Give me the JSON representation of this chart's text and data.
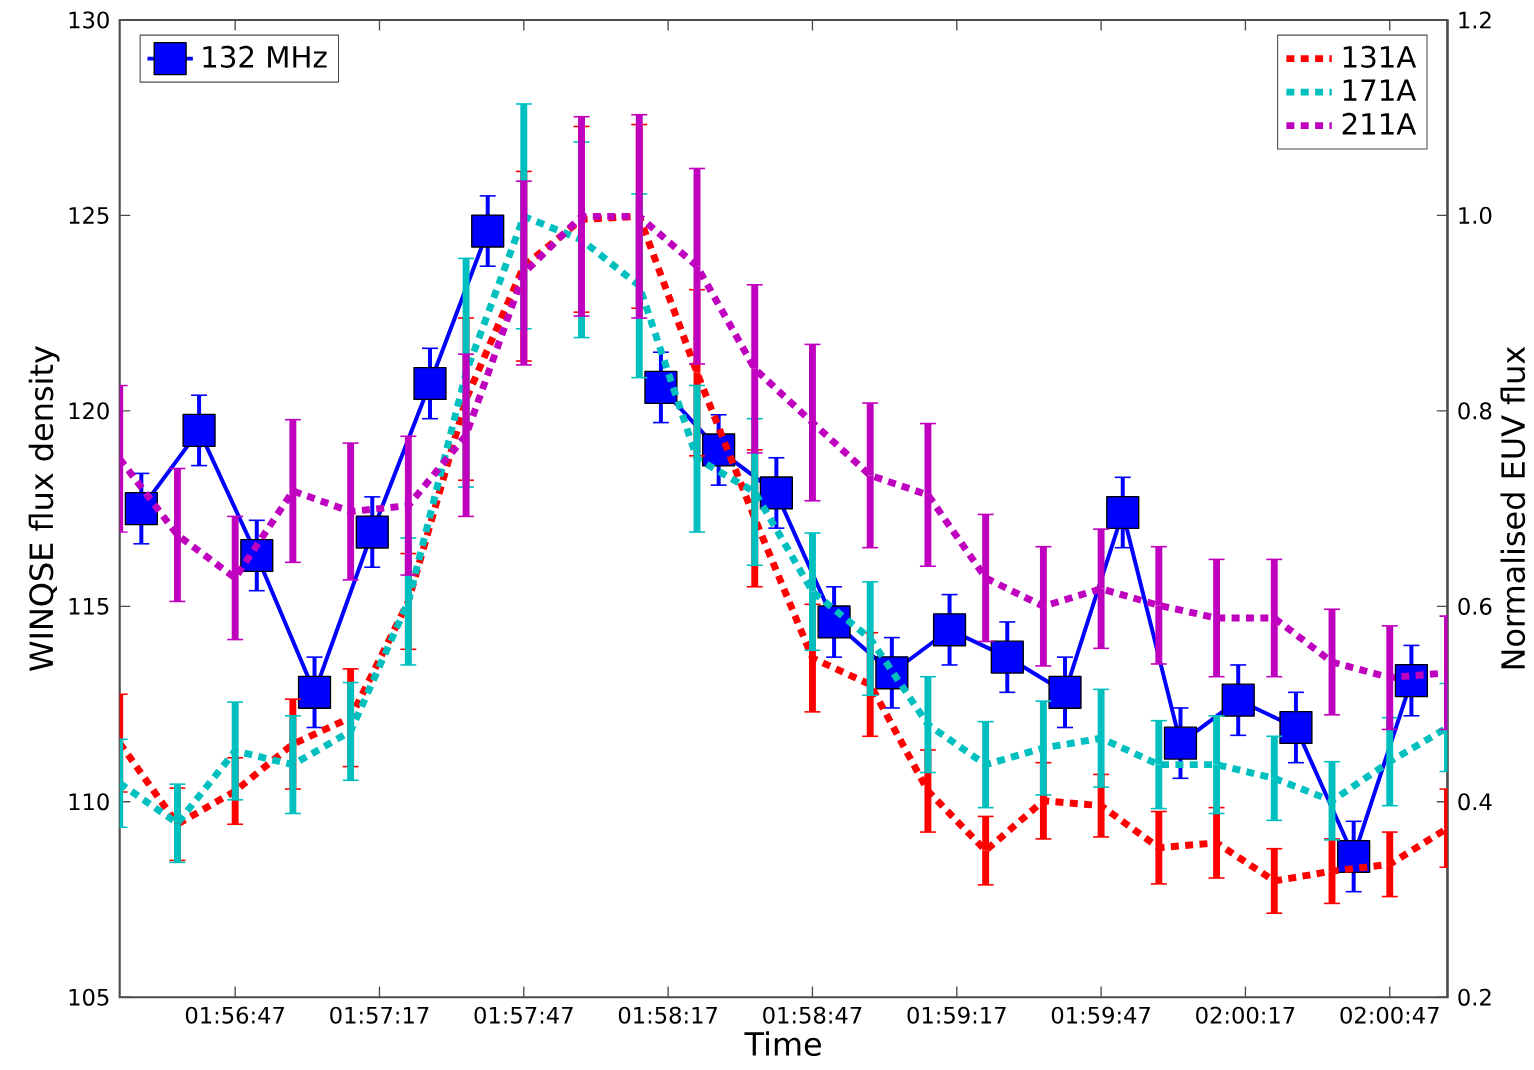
{
  "chart_data": {
    "type": "line",
    "xlabel": "Time",
    "ylabel": "WINQSE flux density",
    "y2label": "Normalised EUV flux",
    "x": [
      1.939722,
      1.943056,
      1.946389,
      1.949722,
      1.953056,
      1.956389,
      1.959722,
      1.963056,
      1.966389,
      1.969722,
      1.973056,
      1.976389,
      1.979722,
      1.983056,
      1.986389,
      1.989722,
      1.993056,
      1.996389,
      1.999722,
      2.003056,
      2.006389,
      2.009722,
      2.013056,
      2.016389
    ],
    "xlim": [
      1.939722,
      2.016389
    ],
    "xticks": [
      {
        "value": 1.946389,
        "label": "01:56:47"
      },
      {
        "value": 1.954722,
        "label": "01:57:17"
      },
      {
        "value": 1.963056,
        "label": "01:57:47"
      },
      {
        "value": 1.971389,
        "label": "01:58:17"
      },
      {
        "value": 1.979722,
        "label": "01:58:47"
      },
      {
        "value": 1.988056,
        "label": "01:59:17"
      },
      {
        "value": 1.996389,
        "label": "01:59:47"
      },
      {
        "value": 2.004722,
        "label": "02:00:17"
      },
      {
        "value": 2.013056,
        "label": "02:00:47"
      }
    ],
    "ylim": [
      105,
      130
    ],
    "yticks": [
      105,
      110,
      115,
      120,
      125,
      130
    ],
    "y2lim": [
      0.2,
      1.2
    ],
    "y2ticks": [
      {
        "value": 0.2,
        "label": "0.2"
      },
      {
        "value": 0.4,
        "label": "0.4"
      },
      {
        "value": 0.6,
        "label": "0.6"
      },
      {
        "value": 0.8,
        "label": "0.8"
      },
      {
        "value": 1.0,
        "label": "1.0"
      },
      {
        "value": 1.2,
        "label": "1.2"
      }
    ],
    "legend": "top right",
    "grid": false,
    "series": [
      {
        "name": "132 MHz",
        "color": "#0000ff",
        "marker": "square",
        "line_style": "solid",
        "x": [
          1.940972,
          1.944306,
          1.947639,
          1.950972,
          1.954306,
          1.957639,
          1.960972,
          1.964306,
          1.967639,
          1.970972,
          1.974306,
          1.977639,
          1.980972,
          1.984306,
          1.987639,
          1.990972,
          1.994306,
          1.997639,
          2.000972,
          2.004306,
          2.007639,
          2.010972,
          2.014306
        ],
        "values": [
          117.5,
          119.5,
          116.3,
          112.8,
          116.9,
          120.7,
          124.6,
          null,
          null,
          120.6,
          119.0,
          117.9,
          114.6,
          113.3,
          114.4,
          113.7,
          112.8,
          117.4,
          111.5,
          112.6,
          111.9,
          108.6,
          113.1
        ],
        "errors": [
          0.9,
          0.9,
          0.9,
          0.9,
          0.9,
          0.9,
          0.9,
          null,
          null,
          0.9,
          0.9,
          0.9,
          0.9,
          0.9,
          0.9,
          0.9,
          0.9,
          0.9,
          0.9,
          0.9,
          0.9,
          0.9,
          0.9
        ]
      },
      {
        "name": "131A",
        "color": "#ff0000",
        "axis": "y2",
        "marker": "none",
        "line_style": "dotted",
        "values": [
          0.46,
          0.377,
          0.411,
          0.459,
          0.486,
          0.605,
          0.812,
          0.948,
          0.996,
          0.999,
          0.839,
          0.69,
          0.547,
          0.52,
          0.411,
          0.35,
          0.401,
          0.396,
          0.353,
          0.358,
          0.319,
          0.329,
          0.336,
          0.373
        ],
        "errors": [
          0.05,
          0.037,
          0.034,
          0.046,
          0.05,
          0.049,
          0.083,
          0.097,
          0.095,
          0.094,
          0.085,
          0.07,
          0.055,
          0.053,
          0.042,
          0.035,
          0.039,
          0.032,
          0.037,
          0.036,
          0.033,
          0.033,
          0.033,
          0.04
        ]
      },
      {
        "name": "171A",
        "color": "#00bfbf",
        "axis": "y2",
        "marker": "none",
        "line_style": "dotted",
        "values": [
          0.419,
          0.378,
          0.452,
          0.438,
          0.472,
          0.605,
          0.839,
          0.999,
          0.975,
          0.928,
          0.751,
          0.717,
          0.615,
          0.567,
          0.479,
          0.438,
          0.455,
          0.465,
          0.438,
          0.438,
          0.424,
          0.401,
          0.441,
          0.476
        ],
        "errors": [
          0.045,
          0.04,
          0.05,
          0.05,
          0.05,
          0.065,
          0.117,
          0.115,
          0.1,
          0.094,
          0.075,
          0.075,
          0.06,
          0.058,
          0.049,
          0.044,
          0.048,
          0.05,
          0.045,
          0.05,
          0.043,
          0.04,
          0.045,
          0.045
        ]
      },
      {
        "name": "211A",
        "color": "#bf00bf",
        "axis": "y2",
        "marker": "none",
        "line_style": "dotted",
        "values": [
          0.751,
          0.673,
          0.629,
          0.718,
          0.697,
          0.703,
          0.775,
          0.941,
          0.999,
          0.999,
          0.948,
          0.843,
          0.788,
          0.734,
          0.714,
          0.629,
          0.6,
          0.618,
          0.601,
          0.588,
          0.588,
          0.543,
          0.527,
          0.532
        ],
        "errors": [
          0.075,
          0.068,
          0.063,
          0.073,
          0.07,
          0.071,
          0.083,
          0.094,
          0.102,
          0.104,
          0.1,
          0.086,
          0.08,
          0.074,
          0.073,
          0.065,
          0.061,
          0.061,
          0.06,
          0.06,
          0.06,
          0.054,
          0.053,
          0.058
        ]
      }
    ]
  }
}
